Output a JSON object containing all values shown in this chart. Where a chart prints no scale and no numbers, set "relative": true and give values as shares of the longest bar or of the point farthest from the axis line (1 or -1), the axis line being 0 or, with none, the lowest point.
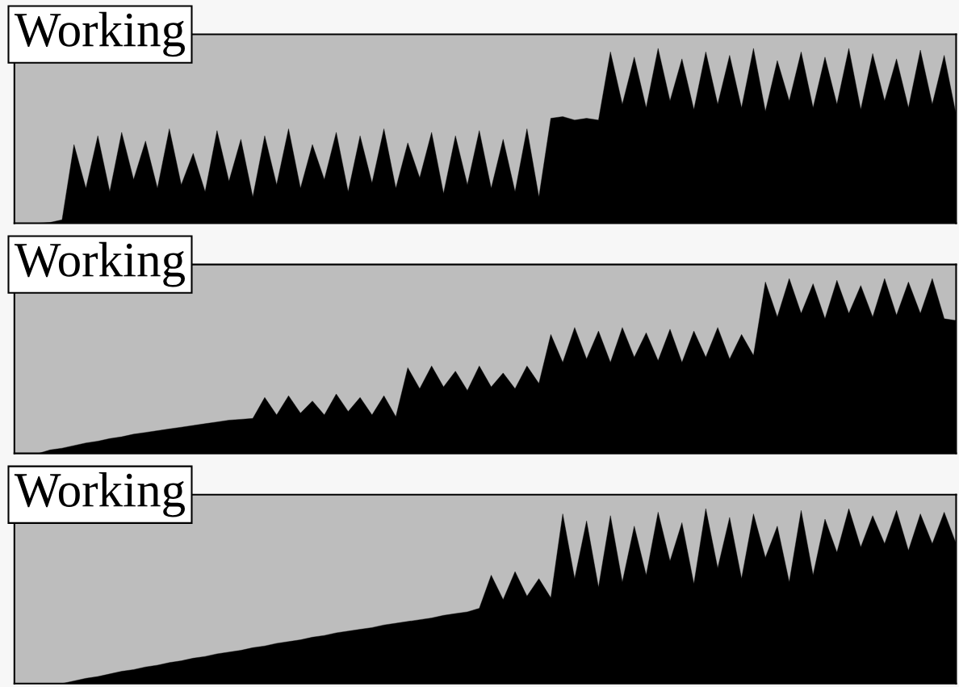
{
  "chart_data": [
    {
      "type": "area",
      "title": "Working",
      "relative": true,
      "categories": [
        null,
        null,
        null,
        null,
        null,
        null,
        null,
        null,
        null,
        null,
        null,
        null,
        null,
        null,
        null,
        null,
        null,
        null,
        null,
        null,
        null,
        null,
        null,
        null,
        null,
        null,
        null,
        null,
        null,
        null,
        null,
        null,
        null,
        null,
        null,
        null,
        null,
        null,
        null,
        null,
        null,
        null,
        null,
        null,
        null,
        null,
        null,
        null,
        null,
        null,
        null,
        null,
        null,
        null,
        null,
        null,
        null,
        null,
        null,
        null,
        null,
        null,
        null,
        null,
        null,
        null,
        null,
        null,
        null,
        null,
        null,
        null,
        null,
        null,
        null,
        null,
        null,
        null,
        null,
        null
      ],
      "series": [
        {
          "color": "#000000",
          "values": [
            0,
            0,
            0,
            0.005,
            0.02,
            0.45,
            0.2,
            0.5,
            0.18,
            0.52,
            0.25,
            0.47,
            0.2,
            0.54,
            0.22,
            0.4,
            0.18,
            0.53,
            0.24,
            0.48,
            0.15,
            0.5,
            0.22,
            0.54,
            0.2,
            0.45,
            0.25,
            0.52,
            0.18,
            0.5,
            0.23,
            0.54,
            0.2,
            0.46,
            0.26,
            0.52,
            0.17,
            0.5,
            0.22,
            0.53,
            0.2,
            0.48,
            0.18,
            0.54,
            0.15,
            0.6,
            0.61,
            0.59,
            0.6,
            0.59,
            0.98,
            0.68,
            0.95,
            0.66,
            1.0,
            0.7,
            0.94,
            0.65,
            0.98,
            0.68,
            0.96,
            0.66,
            1.0,
            0.64,
            0.93,
            0.7,
            0.98,
            0.66,
            0.95,
            0.68,
            1.0,
            0.65,
            0.97,
            0.7,
            0.94,
            0.66,
            0.99,
            0.68,
            0.96,
            0.62
          ]
        }
      ]
    },
    {
      "type": "area",
      "title": "Working",
      "relative": true,
      "categories": [
        null,
        null,
        null,
        null,
        null,
        null,
        null,
        null,
        null,
        null,
        null,
        null,
        null,
        null,
        null,
        null,
        null,
        null,
        null,
        null,
        null,
        null,
        null,
        null,
        null,
        null,
        null,
        null,
        null,
        null,
        null,
        null,
        null,
        null,
        null,
        null,
        null,
        null,
        null,
        null,
        null,
        null,
        null,
        null,
        null,
        null,
        null,
        null,
        null,
        null,
        null,
        null,
        null,
        null,
        null,
        null,
        null,
        null,
        null,
        null,
        null,
        null,
        null,
        null,
        null,
        null,
        null,
        null,
        null,
        null,
        null,
        null,
        null,
        null,
        null,
        null,
        null,
        null,
        null,
        null
      ],
      "series": [
        {
          "color": "#000000",
          "values": [
            0,
            0,
            0,
            0.02,
            0.03,
            0.045,
            0.06,
            0.07,
            0.085,
            0.095,
            0.11,
            0.12,
            0.13,
            0.14,
            0.15,
            0.16,
            0.17,
            0.18,
            0.19,
            0.195,
            0.2,
            0.32,
            0.22,
            0.33,
            0.23,
            0.3,
            0.22,
            0.34,
            0.24,
            0.32,
            0.22,
            0.33,
            0.21,
            0.49,
            0.37,
            0.5,
            0.38,
            0.47,
            0.36,
            0.5,
            0.38,
            0.46,
            0.37,
            0.5,
            0.4,
            0.68,
            0.52,
            0.72,
            0.54,
            0.7,
            0.52,
            0.72,
            0.55,
            0.69,
            0.53,
            0.71,
            0.52,
            0.7,
            0.55,
            0.72,
            0.54,
            0.68,
            0.56,
            0.98,
            0.78,
            1.0,
            0.8,
            0.97,
            0.77,
            0.99,
            0.8,
            0.96,
            0.78,
            1.0,
            0.79,
            0.98,
            0.8,
            1.0,
            0.77,
            0.76
          ]
        }
      ]
    },
    {
      "type": "area",
      "title": "Working",
      "relative": true,
      "categories": [
        null,
        null,
        null,
        null,
        null,
        null,
        null,
        null,
        null,
        null,
        null,
        null,
        null,
        null,
        null,
        null,
        null,
        null,
        null,
        null,
        null,
        null,
        null,
        null,
        null,
        null,
        null,
        null,
        null,
        null,
        null,
        null,
        null,
        null,
        null,
        null,
        null,
        null,
        null,
        null,
        null,
        null,
        null,
        null,
        null,
        null,
        null,
        null,
        null,
        null,
        null,
        null,
        null,
        null,
        null,
        null,
        null,
        null,
        null,
        null,
        null,
        null,
        null,
        null,
        null,
        null,
        null,
        null,
        null,
        null,
        null,
        null,
        null,
        null,
        null,
        null,
        null,
        null,
        null,
        null
      ],
      "series": [
        {
          "color": "#000000",
          "values": [
            0,
            0,
            0,
            0,
            0,
            0.015,
            0.03,
            0.04,
            0.055,
            0.07,
            0.08,
            0.095,
            0.105,
            0.12,
            0.13,
            0.145,
            0.155,
            0.17,
            0.18,
            0.19,
            0.205,
            0.215,
            0.23,
            0.24,
            0.25,
            0.265,
            0.275,
            0.29,
            0.3,
            0.31,
            0.32,
            0.335,
            0.345,
            0.355,
            0.365,
            0.375,
            0.39,
            0.4,
            0.41,
            0.43,
            0.62,
            0.48,
            0.64,
            0.5,
            0.6,
            0.49,
            0.97,
            0.6,
            0.93,
            0.55,
            0.96,
            0.58,
            0.9,
            0.62,
            0.98,
            0.7,
            0.92,
            0.57,
            1.0,
            0.66,
            0.95,
            0.6,
            0.97,
            0.72,
            0.9,
            0.58,
            0.99,
            0.62,
            0.94,
            0.75,
            1.0,
            0.78,
            0.96,
            0.8,
            0.99,
            0.76,
            0.97,
            0.8,
            0.98,
            0.8
          ]
        }
      ]
    }
  ]
}
